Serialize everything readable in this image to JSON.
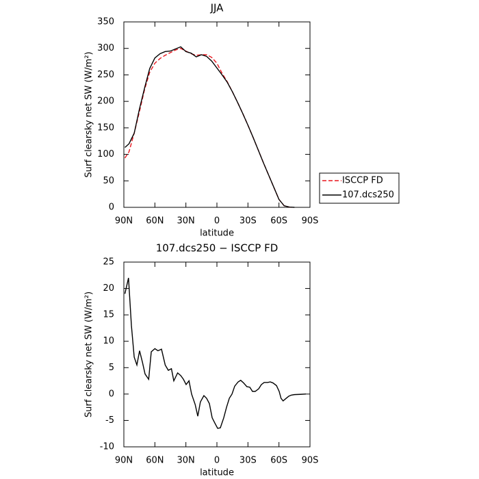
{
  "chart_data": [
    {
      "type": "line",
      "title": "JJA",
      "xlabel": "latitude",
      "ylabel": "Surf clearsky net SW (W/m²)",
      "xlim": [
        90,
        -90
      ],
      "ylim": [
        0,
        350
      ],
      "xticks": [
        {
          "value": 90,
          "label": "90N"
        },
        {
          "value": 60,
          "label": "60N"
        },
        {
          "value": 30,
          "label": "30N"
        },
        0,
        {
          "value": -30,
          "label": "30S"
        },
        {
          "value": -60,
          "label": "60S"
        },
        {
          "value": -90,
          "label": "90S"
        }
      ],
      "yticks": [
        0,
        50,
        100,
        150,
        200,
        250,
        300,
        350
      ],
      "legend": "right",
      "series": [
        {
          "name": "ISCCP FD",
          "color": "#e8141c",
          "dashed": true,
          "x": [
            89,
            85,
            80,
            75,
            70,
            65,
            60,
            55,
            50,
            45,
            40,
            35,
            30,
            25,
            20,
            15,
            10,
            5,
            0,
            -5,
            -10,
            -15,
            -20,
            -25,
            -30,
            -35,
            -40,
            -45,
            -50,
            -55,
            -60,
            -65,
            -70,
            -73
          ],
          "values": [
            93,
            105,
            140,
            180,
            222,
            255,
            272,
            281,
            287,
            292,
            297,
            300,
            295,
            290,
            287,
            288,
            288,
            283,
            272,
            253,
            237,
            218,
            198,
            177,
            155,
            132,
            108,
            84,
            61,
            38,
            15,
            3,
            0.5,
            0
          ]
        },
        {
          "name": "107.dcs250",
          "color": "#000000",
          "dashed": false,
          "x": [
            89,
            85,
            80,
            75,
            70,
            65,
            60,
            55,
            50,
            45,
            40,
            35,
            30,
            25,
            20,
            15,
            10,
            5,
            0,
            -5,
            -10,
            -15,
            -20,
            -25,
            -30,
            -35,
            -40,
            -45,
            -50,
            -55,
            -60,
            -65,
            -70,
            -75
          ],
          "values": [
            113,
            120,
            140,
            185,
            225,
            262,
            282,
            290,
            294,
            295,
            299,
            303,
            294,
            291,
            284,
            288,
            285,
            276,
            263,
            250,
            236,
            218,
            198,
            177,
            155,
            132,
            108,
            84,
            61,
            38,
            15,
            3,
            0.5,
            0
          ]
        }
      ]
    },
    {
      "type": "line",
      "title": "107.dcs250 − ISCCP FD",
      "xlabel": "latitude",
      "ylabel": "Surf clearsky net SW (W/m²)",
      "xlim": [
        90,
        -90
      ],
      "ylim": [
        -10,
        25
      ],
      "xticks": [
        {
          "value": 90,
          "label": "90N"
        },
        {
          "value": 60,
          "label": "60N"
        },
        {
          "value": 30,
          "label": "30N"
        },
        0,
        {
          "value": -30,
          "label": "30S"
        },
        {
          "value": -60,
          "label": "60S"
        },
        {
          "value": -90,
          "label": "90S"
        }
      ],
      "yticks": [
        -10,
        -5,
        0,
        5,
        10,
        15,
        20,
        25
      ],
      "series": [
        {
          "color": "#000000",
          "dashed": false,
          "x": [
            89,
            85.5,
            82.7,
            80,
            77.4,
            74.8,
            72,
            69.5,
            66,
            63.5,
            60,
            57,
            53.6,
            50,
            47,
            44,
            41.7,
            38,
            35,
            32.4,
            29.8,
            27,
            24.5,
            21,
            18.5,
            16,
            12.6,
            10,
            7.3,
            4.6,
            2,
            -0.7,
            -3.3,
            -6.6,
            -9.3,
            -12,
            -14.6,
            -17.2,
            -20.5,
            -23,
            -25.8,
            -29,
            -31.8,
            -34.4,
            -37,
            -40.4,
            -43,
            -45.7,
            -49,
            -51.6,
            -54.3,
            -57.6,
            -60.2,
            -62,
            -64,
            -67,
            -69.5,
            -72,
            -75,
            -81,
            -86
          ],
          "values": [
            19,
            22,
            13,
            7,
            5.5,
            8.2,
            6,
            3.8,
            2.8,
            8,
            8.6,
            8.2,
            8.5,
            5.5,
            4.5,
            4.8,
            2.5,
            4,
            3.5,
            2.8,
            1.8,
            2.5,
            0,
            -2,
            -4.2,
            -1.5,
            -0.3,
            -0.8,
            -1.8,
            -4.5,
            -5.5,
            -6.5,
            -6.4,
            -4.5,
            -2.5,
            -0.8,
            0,
            1.5,
            2.3,
            2.6,
            2.1,
            1.4,
            1.3,
            0.5,
            0.5,
            1,
            1.8,
            2.2,
            2.2,
            2.3,
            2.1,
            1.6,
            0.5,
            -0.8,
            -1.3,
            -0.8,
            -0.4,
            -0.2,
            -0.1,
            -0.05,
            0
          ]
        }
      ]
    }
  ]
}
